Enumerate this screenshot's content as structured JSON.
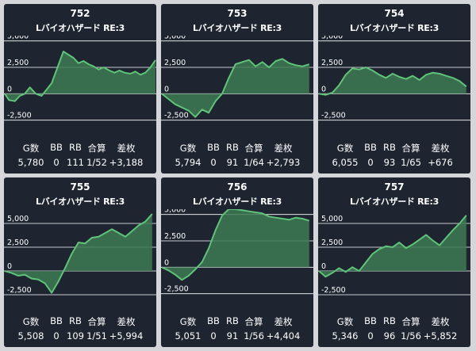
{
  "headers": {
    "games": "G数",
    "bb": "BB",
    "rb": "RB",
    "combined": "合算",
    "diff": "差枚"
  },
  "y_ticks": [
    "5,000",
    "2,500",
    "0",
    "-2,500"
  ],
  "colors": {
    "background": "#d4d6da",
    "card": "#1e2430",
    "line": "#5fc37a",
    "fill": "#3d7a52",
    "grid": "#ffffff"
  },
  "machines": [
    {
      "number": "752",
      "name": "Lバイオハザード RE:3",
      "games": "5,780",
      "bb": "0",
      "rb": "111",
      "combined": "1/52",
      "diff": "+3,188",
      "chart_data": {
        "type": "area",
        "ylim": [
          -3500,
          5500
        ],
        "x": [
          0,
          5,
          12,
          18,
          24,
          30,
          37,
          44,
          50,
          56,
          63,
          70,
          76,
          82,
          88,
          94,
          100,
          106,
          112,
          118,
          125,
          131,
          137,
          143,
          150,
          156,
          162,
          168,
          174,
          180
        ],
        "values": [
          0,
          -600,
          -700,
          -200,
          0,
          600,
          0,
          -200,
          400,
          1000,
          2500,
          4000,
          3700,
          3400,
          2900,
          3100,
          2800,
          2600,
          2300,
          2500,
          2200,
          2000,
          2200,
          2000,
          1900,
          2100,
          1800,
          2000,
          2500,
          3188
        ]
      }
    },
    {
      "number": "753",
      "name": "Lバイオハザード RE:3",
      "games": "5,794",
      "bb": "0",
      "rb": "91",
      "combined": "1/64",
      "diff": "+2,793",
      "chart_data": {
        "type": "area",
        "ylim": [
          -3500,
          5500
        ],
        "x": [
          0,
          8,
          16,
          24,
          32,
          40,
          48,
          56,
          64,
          72,
          80,
          88,
          96,
          104,
          112,
          120,
          128,
          136,
          144,
          152,
          160,
          168,
          176
        ],
        "values": [
          0,
          -500,
          -1000,
          -1300,
          -1600,
          -2200,
          -1500,
          -1800,
          -700,
          0,
          1500,
          2800,
          3000,
          3200,
          2600,
          3000,
          2500,
          3100,
          3300,
          2900,
          2700,
          2600,
          2793
        ]
      }
    },
    {
      "number": "754",
      "name": "Lバイオハザード RE:3",
      "games": "6,055",
      "bb": "0",
      "rb": "93",
      "combined": "1/65",
      "diff": "+676",
      "chart_data": {
        "type": "area",
        "ylim": [
          -3500,
          5500
        ],
        "x": [
          0,
          8,
          16,
          24,
          32,
          40,
          48,
          56,
          64,
          72,
          80,
          88,
          96,
          104,
          112,
          120,
          128,
          136,
          144,
          152,
          160,
          168,
          176
        ],
        "values": [
          0,
          -100,
          100,
          800,
          1800,
          2400,
          2300,
          2500,
          2200,
          1800,
          1500,
          1900,
          1600,
          1400,
          1700,
          1300,
          1800,
          2000,
          1900,
          1700,
          1500,
          1200,
          676
        ]
      }
    },
    {
      "number": "755",
      "name": "Lバイオハザード RE:3",
      "games": "5,508",
      "bb": "0",
      "rb": "109",
      "combined": "1/51",
      "diff": "+5,994",
      "chart_data": {
        "type": "area",
        "ylim": [
          -3500,
          6500
        ],
        "x": [
          0,
          8,
          16,
          24,
          32,
          40,
          48,
          56,
          64,
          72,
          80,
          88,
          96,
          104,
          112,
          120,
          128,
          136,
          144,
          152,
          160,
          168,
          176
        ],
        "values": [
          0,
          -200,
          -500,
          -400,
          -800,
          -900,
          -1300,
          -2300,
          -1100,
          300,
          1800,
          3000,
          2900,
          3500,
          3600,
          4000,
          4400,
          4000,
          3600,
          4200,
          4800,
          5200,
          5994
        ]
      }
    },
    {
      "number": "756",
      "name": "Lバイオハザード RE:3",
      "games": "5,051",
      "bb": "0",
      "rb": "91",
      "combined": "1/56",
      "diff": "+4,404",
      "chart_data": {
        "type": "area",
        "ylim": [
          -3500,
          5500
        ],
        "x": [
          0,
          8,
          16,
          24,
          32,
          40,
          48,
          56,
          64,
          72,
          80,
          88,
          96,
          104,
          112,
          120,
          128,
          136,
          144,
          152,
          160,
          168,
          176
        ],
        "values": [
          0,
          -300,
          -700,
          -1200,
          -800,
          -200,
          500,
          1800,
          3500,
          4900,
          5500,
          5500,
          5400,
          5300,
          5200,
          5100,
          4800,
          4700,
          4600,
          4500,
          4700,
          4600,
          4404
        ]
      }
    },
    {
      "number": "757",
      "name": "Lバイオハザード RE:3",
      "games": "5,346",
      "bb": "0",
      "rb": "96",
      "combined": "1/56",
      "diff": "+5,852",
      "chart_data": {
        "type": "area",
        "ylim": [
          -3500,
          6500
        ],
        "x": [
          0,
          8,
          16,
          24,
          32,
          40,
          48,
          56,
          64,
          72,
          80,
          88,
          96,
          104,
          112,
          120,
          128,
          136,
          144,
          152,
          160,
          168,
          176
        ],
        "values": [
          0,
          -600,
          -200,
          300,
          -100,
          400,
          0,
          900,
          1800,
          2300,
          2600,
          2500,
          3000,
          2400,
          2800,
          3300,
          3800,
          3200,
          2700,
          3500,
          4300,
          5000,
          5852
        ]
      }
    }
  ]
}
